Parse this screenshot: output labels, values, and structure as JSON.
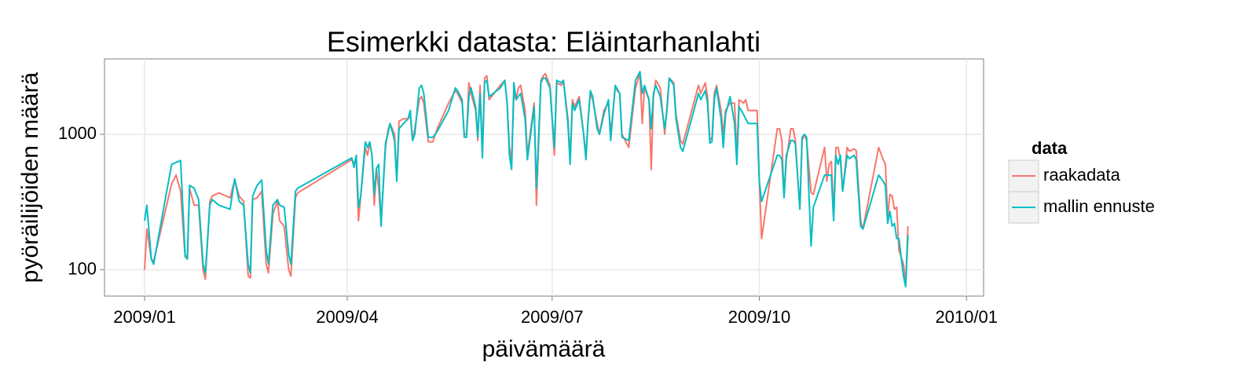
{
  "chart_data": {
    "type": "line",
    "title": "Esimerkki datasta: Eläintarhanlahti",
    "xlabel": "päivämäärä",
    "ylabel": "pyöräilijöiden määrä",
    "log_y": true,
    "grid": true,
    "legend_title": "data",
    "legend_position": "right",
    "xlim": [
      -17.8,
      372.6
    ],
    "xticks": [
      {
        "value": 0,
        "label": "2009/01"
      },
      {
        "value": 90,
        "label": "2009/04"
      },
      {
        "value": 181,
        "label": "2009/07"
      },
      {
        "value": 273,
        "label": "2009/10"
      },
      {
        "value": 365,
        "label": "2010/01"
      }
    ],
    "ylim": [
      64,
      3600
    ],
    "yticks": [
      100,
      1000
    ],
    "x": [
      0,
      1,
      3,
      4,
      12,
      14,
      16,
      18,
      19,
      20,
      22,
      24,
      26,
      27,
      29,
      30,
      33,
      38,
      40,
      42,
      44,
      46,
      47,
      48,
      50,
      52,
      54,
      55,
      57,
      59,
      60,
      62,
      64,
      65,
      67,
      68,
      92,
      93,
      94,
      95,
      96,
      98,
      99,
      100,
      101,
      102,
      103,
      104,
      105,
      107,
      108,
      109,
      110,
      111,
      112,
      113,
      115,
      117,
      118,
      119,
      120,
      122,
      123,
      124,
      126,
      128,
      130,
      135,
      138,
      139,
      141,
      142,
      143,
      144,
      145,
      147,
      148,
      149,
      150,
      151,
      152,
      153,
      158,
      160,
      161,
      162,
      163,
      164,
      165,
      166,
      167,
      169,
      170,
      173,
      174,
      176,
      177,
      178,
      180,
      182,
      183,
      185,
      186,
      188,
      189,
      190,
      191,
      193,
      195,
      196,
      197,
      198,
      199,
      201,
      202,
      204,
      206,
      207,
      209,
      211,
      212,
      215,
      218,
      220,
      221,
      222,
      224,
      225,
      226,
      227,
      229,
      231,
      232,
      233,
      235,
      236,
      238,
      239,
      246,
      247,
      249,
      250,
      251,
      252,
      253,
      254,
      256,
      257,
      258,
      260,
      262,
      263,
      264,
      266,
      267,
      268,
      272,
      273,
      274,
      281,
      282,
      283,
      284,
      285,
      287,
      288,
      289,
      291,
      292,
      293,
      294,
      296,
      297,
      302,
      303,
      304,
      305,
      306,
      307,
      308,
      309,
      310,
      312,
      313,
      315,
      316,
      318,
      319,
      326,
      328,
      329,
      330,
      331,
      332,
      333,
      334,
      335,
      337,
      338,
      339
    ],
    "series": [
      {
        "name": "raakadata",
        "color": "#F8766D",
        "values": [
          100,
          200,
          120,
          115,
          430,
          500,
          380,
          125,
          120,
          400,
          300,
          300,
          100,
          85,
          320,
          350,
          370,
          340,
          460,
          350,
          320,
          90,
          87,
          330,
          340,
          380,
          110,
          95,
          260,
          320,
          230,
          210,
          100,
          90,
          340,
          370,
          650,
          620,
          640,
          230,
          350,
          800,
          700,
          870,
          700,
          300,
          550,
          400,
          220,
          800,
          1050,
          1200,
          1100,
          1000,
          470,
          1250,
          1300,
          1300,
          1400,
          900,
          1100,
          1800,
          1900,
          1700,
          880,
          880,
          1100,
          1700,
          2100,
          2000,
          1700,
          1000,
          1000,
          2400,
          2000,
          1500,
          900,
          2300,
          700,
          2600,
          2700,
          1800,
          2300,
          2500,
          1700,
          800,
          650,
          2000,
          1800,
          2200,
          2300,
          1500,
          700,
          1700,
          300,
          2500,
          2700,
          2800,
          2300,
          700,
          2400,
          2300,
          2500,
          1300,
          650,
          1800,
          1600,
          1900,
          1000,
          700,
          1300,
          2000,
          1800,
          1200,
          1000,
          1500,
          1700,
          1000,
          2200,
          2000,
          1000,
          800,
          2200,
          2800,
          1200,
          2200,
          1800,
          550,
          1900,
          2500,
          2200,
          1000,
          1600,
          2600,
          2400,
          1400,
          900,
          850,
          2300,
          2000,
          2400,
          1900,
          900,
          950,
          2000,
          2300,
          1500,
          1000,
          1500,
          1700,
          1700,
          700,
          1800,
          1700,
          1800,
          1500,
          1500,
          450,
          170,
          1100,
          1100,
          900,
          350,
          650,
          1100,
          1100,
          900,
          280,
          900,
          1000,
          900,
          370,
          360,
          800,
          450,
          600,
          630,
          260,
          800,
          800,
          650,
          380,
          800,
          750,
          780,
          760,
          230,
          200,
          800,
          650,
          600,
          250,
          360,
          350,
          280,
          290,
          140,
          110,
          80,
          210
        ]
      },
      {
        "name": "mallin ennuste",
        "color": "#00BFC4",
        "values": [
          230,
          300,
          120,
          110,
          600,
          620,
          640,
          130,
          120,
          420,
          400,
          330,
          110,
          95,
          300,
          330,
          300,
          280,
          470,
          320,
          300,
          110,
          95,
          350,
          420,
          460,
          140,
          110,
          300,
          330,
          300,
          290,
          130,
          110,
          380,
          400,
          670,
          570,
          700,
          290,
          350,
          880,
          800,
          880,
          700,
          360,
          560,
          600,
          210,
          860,
          1000,
          1200,
          1050,
          900,
          450,
          1100,
          1200,
          1300,
          1500,
          900,
          1000,
          2200,
          2300,
          2000,
          950,
          950,
          1050,
          1500,
          2200,
          2100,
          1800,
          950,
          950,
          1900,
          2200,
          1600,
          950,
          2000,
          670,
          2400,
          2500,
          1900,
          2200,
          2500,
          1700,
          700,
          550,
          2400,
          1800,
          1900,
          2000,
          1300,
          650,
          1600,
          400,
          2400,
          2600,
          2600,
          2200,
          800,
          2500,
          2400,
          2500,
          1200,
          600,
          1700,
          1500,
          1800,
          1000,
          650,
          1300,
          2100,
          1900,
          1100,
          1000,
          1400,
          1800,
          900,
          2300,
          2000,
          950,
          900,
          2500,
          2900,
          2000,
          2300,
          1800,
          1100,
          2000,
          2300,
          1900,
          1100,
          1500,
          2600,
          2300,
          1300,
          800,
          750,
          2000,
          1800,
          2100,
          1700,
          860,
          880,
          1800,
          2200,
          1300,
          800,
          1400,
          1900,
          1200,
          600,
          1600,
          1400,
          1300,
          1200,
          1200,
          450,
          320,
          700,
          700,
          650,
          340,
          700,
          900,
          900,
          850,
          280,
          950,
          1000,
          950,
          150,
          290,
          500,
          500,
          500,
          500,
          230,
          700,
          600,
          700,
          380,
          700,
          660,
          700,
          650,
          210,
          200,
          500,
          450,
          420,
          220,
          270,
          210,
          220,
          170,
          170,
          90,
          75,
          180
        ]
      }
    ]
  }
}
